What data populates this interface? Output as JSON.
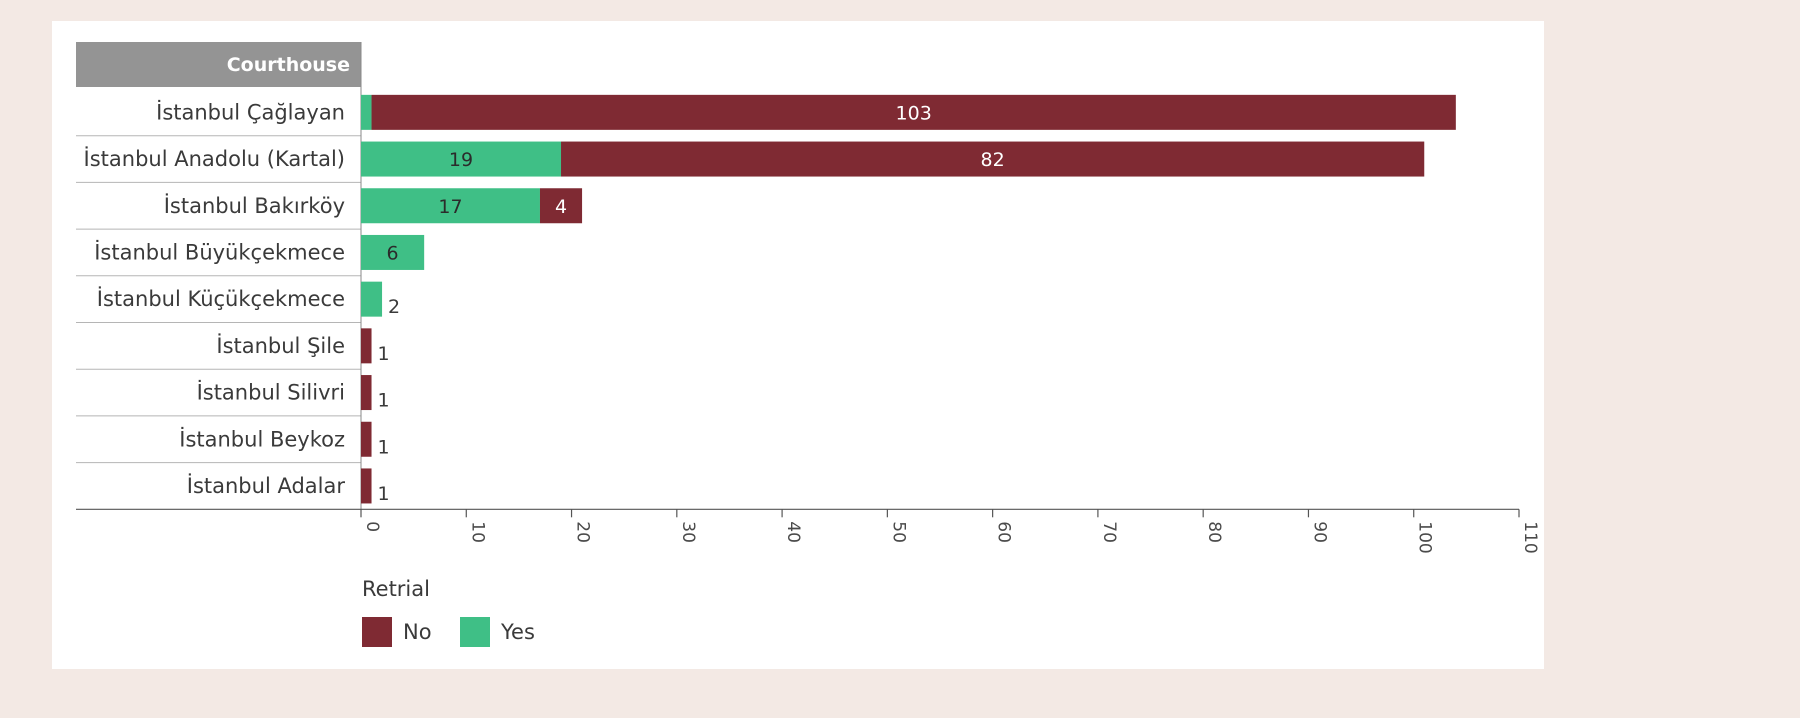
{
  "chart_data": {
    "type": "bar",
    "orientation": "horizontal",
    "stacked": true,
    "row_header": "Courthouse",
    "categories": [
      "İstanbul Çağlayan",
      "İstanbul Anadolu (Kartal)",
      "İstanbul Bakırköy",
      "İstanbul Büyükçekmece",
      "İstanbul Küçükçekmece",
      "İstanbul Şile",
      "İstanbul Silivri",
      "İstanbul Beykoz",
      "İstanbul Adalar"
    ],
    "series": [
      {
        "name": "Yes",
        "color": "#3fbf86",
        "values": [
          1,
          19,
          17,
          6,
          2,
          0,
          0,
          0,
          0
        ]
      },
      {
        "name": "No",
        "color": "#7f2a33",
        "values": [
          103,
          82,
          4,
          0,
          0,
          1,
          1,
          1,
          1
        ]
      }
    ],
    "data_labels": {
      "Yes": [
        "",
        "19",
        "17",
        "6",
        "2",
        "",
        "",
        "",
        ""
      ],
      "No": [
        "103",
        "82",
        "4",
        "",
        "",
        "1",
        "1",
        "1",
        "1"
      ]
    },
    "xlim": [
      0,
      110
    ],
    "xticks": [
      0,
      10,
      20,
      30,
      40,
      50,
      60,
      70,
      80,
      90,
      100,
      110
    ],
    "tick_label_rotation": "vertical",
    "legend": {
      "title": "Retrial",
      "placement": "bottom-left",
      "entries": [
        {
          "name": "No",
          "color": "#7f2a33"
        },
        {
          "name": "Yes",
          "color": "#3fbf86"
        }
      ]
    },
    "grid": false,
    "header_color": "#949494"
  }
}
